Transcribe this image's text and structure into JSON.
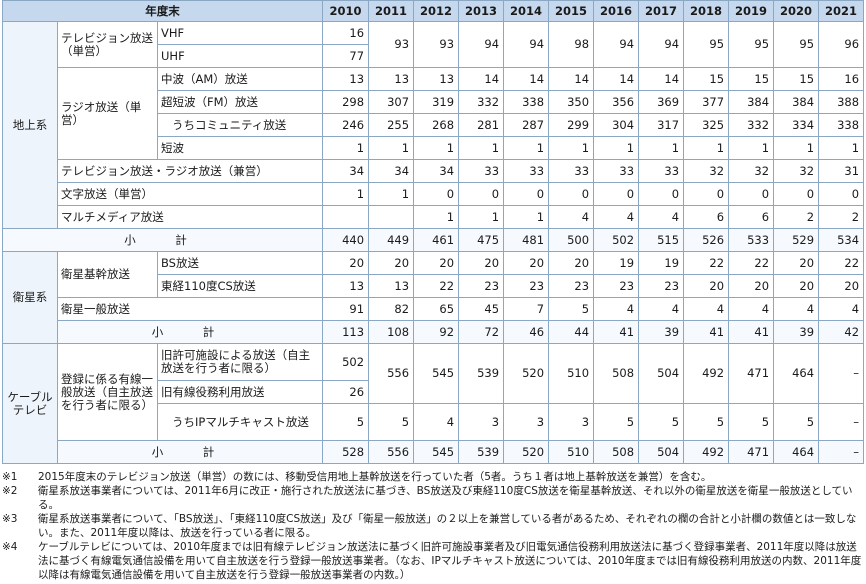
{
  "years_header": "年度末",
  "years": [
    "2010",
    "2011",
    "2012",
    "2013",
    "2014",
    "2015",
    "2016",
    "2017",
    "2018",
    "2019",
    "2020",
    "2021"
  ],
  "terrestrial": {
    "label": "地上系",
    "tv_label": "テレビジョン放送（単営）",
    "vhf_label": "VHF",
    "vhf_2010": "16",
    "uhf_label": "UHF",
    "uhf_2010": "77",
    "tv_later": [
      "93",
      "93",
      "94",
      "94",
      "98",
      "94",
      "94",
      "95",
      "95",
      "95",
      "96"
    ],
    "radio_label": "ラジオ放送（単営）",
    "am_label": "中波（AM）放送",
    "am": [
      "13",
      "13",
      "13",
      "14",
      "14",
      "14",
      "14",
      "14",
      "15",
      "15",
      "15",
      "16"
    ],
    "fm_label": "超短波（FM）放送",
    "fm": [
      "298",
      "307",
      "319",
      "332",
      "338",
      "350",
      "356",
      "369",
      "377",
      "384",
      "384",
      "388"
    ],
    "community_label": "うちコミュニティ放送",
    "community": [
      "246",
      "255",
      "268",
      "281",
      "287",
      "299",
      "304",
      "317",
      "325",
      "332",
      "334",
      "338"
    ],
    "sw_label": "短波",
    "sw": [
      "1",
      "1",
      "1",
      "1",
      "1",
      "1",
      "1",
      "1",
      "1",
      "1",
      "1",
      "1"
    ],
    "tvradio_label": "テレビジョン放送・ラジオ放送（兼営）",
    "tvradio": [
      "34",
      "34",
      "34",
      "33",
      "33",
      "33",
      "33",
      "33",
      "32",
      "32",
      "32",
      "31"
    ],
    "teletext_label": "文字放送（単営）",
    "teletext": [
      "1",
      "1",
      "0",
      "0",
      "0",
      "0",
      "0",
      "0",
      "0",
      "0",
      "0",
      "0"
    ],
    "multimedia_label": "マルチメディア放送",
    "multimedia": [
      "",
      "",
      "1",
      "1",
      "1",
      "4",
      "4",
      "4",
      "6",
      "6",
      "2",
      "2"
    ],
    "subtotal_label": "小　計",
    "subtotal": [
      "440",
      "449",
      "461",
      "475",
      "481",
      "500",
      "502",
      "515",
      "526",
      "533",
      "529",
      "534"
    ]
  },
  "satellite": {
    "label": "衛星系",
    "core_label": "衛星基幹放送",
    "bs_label": "BS放送",
    "bs": [
      "20",
      "20",
      "20",
      "20",
      "20",
      "20",
      "19",
      "19",
      "22",
      "22",
      "20",
      "22"
    ],
    "cs_label": "東経110度CS放送",
    "cs": [
      "13",
      "13",
      "22",
      "23",
      "23",
      "23",
      "23",
      "23",
      "20",
      "20",
      "20",
      "20"
    ],
    "general_label": "衛星一般放送",
    "general": [
      "91",
      "82",
      "65",
      "45",
      "7",
      "5",
      "4",
      "4",
      "4",
      "4",
      "4",
      "4"
    ],
    "subtotal_label": "小　計",
    "subtotal": [
      "113",
      "108",
      "92",
      "72",
      "46",
      "44",
      "41",
      "39",
      "41",
      "41",
      "39",
      "42"
    ]
  },
  "cable": {
    "label": "ケーブルテレビ",
    "registered_label": "登録に係る有線一般放送（自主放送を行う者に限る）",
    "licensed_label": "旧許可施設による放送（自主放送を行う者に限る）",
    "licensed_2010": "502",
    "wired_label": "旧有線役務利用放送",
    "wired_2010": "26",
    "registered_later": [
      "556",
      "545",
      "539",
      "520",
      "510",
      "508",
      "504",
      "492",
      "471",
      "464",
      "–"
    ],
    "ip_label": "うちIPマルチキャスト放送",
    "ip": [
      "5",
      "5",
      "4",
      "3",
      "3",
      "3",
      "5",
      "5",
      "5",
      "5",
      "5",
      "–"
    ],
    "subtotal_label": "小　計",
    "subtotal": [
      "528",
      "556",
      "545",
      "539",
      "520",
      "510",
      "508",
      "504",
      "492",
      "471",
      "464",
      "–"
    ]
  },
  "notes": [
    {
      "mark": "※1",
      "text": "2015年度末のテレビジョン放送（単営）の数には、移動受信用地上基幹放送を行っていた者（5者。うち１者は地上基幹放送を兼営）を含む。"
    },
    {
      "mark": "※2",
      "text": "衛星系放送事業者については、2011年6月に改正・施行された放送法に基づき、BS放送及び東経110度CS放送を衛星基幹放送、それ以外の衛星放送を衛星一般放送としている。"
    },
    {
      "mark": "※3",
      "text": "衛星系放送事業者について、「BS放送」、「東経110度CS放送」及び「衛星一般放送」の２以上を兼営している者があるため、それぞれの欄の合計と小計欄の数値とは一致しない。また、2011年度以降は、放送を行っている者に限る。"
    },
    {
      "mark": "※4",
      "text": "ケーブルテレビについては、2010年度までは旧有線テレビジョン放送法に基づく旧許可施設事業者及び旧電気通信役務利用放送法に基づく登録事業者、2011年度以降は放送法に基づく有線電気通信設備を用いて自主放送を行う登録一般放送事業者。（なお、IPマルチキャスト放送については、2010年度までは旧有線役務利用放送の内数、2011年度以降は有線電気通信設備を用いて自主放送を行う登録一般放送事業者の内数。）"
    }
  ]
}
